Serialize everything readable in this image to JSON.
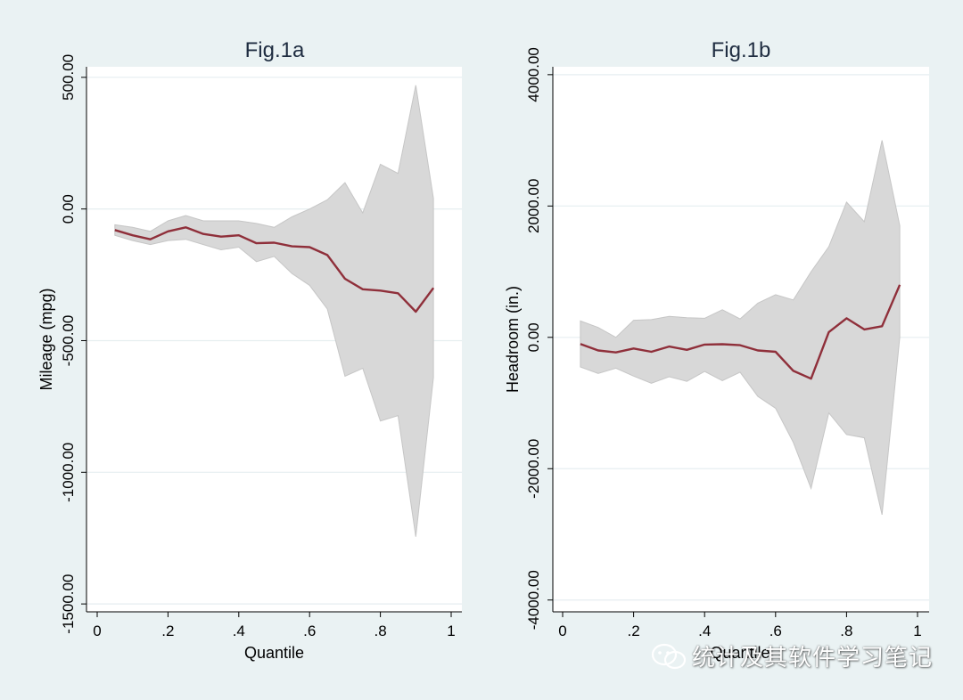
{
  "chart_data": [
    {
      "type": "area",
      "title": "Fig.1a",
      "xlabel": "Quantile",
      "ylabel": "Mileage (mpg)",
      "xlim": [
        0,
        1
      ],
      "ylim": [
        -1530,
        540
      ],
      "xticks": [
        0,
        0.2,
        0.4,
        0.6,
        0.8,
        1
      ],
      "xtick_labels": [
        "0",
        ".2",
        ".4",
        ".6",
        ".8",
        "1"
      ],
      "yticks": [
        500,
        0,
        -500,
        -1000,
        -1500
      ],
      "ytick_labels": [
        "500.00",
        "0.00",
        "-500.00",
        "-1000.00",
        "-1500.00"
      ],
      "grid": true,
      "x": [
        0.05,
        0.1,
        0.15,
        0.2,
        0.25,
        0.3,
        0.35,
        0.4,
        0.45,
        0.5,
        0.55,
        0.6,
        0.65,
        0.7,
        0.75,
        0.8,
        0.85,
        0.9,
        0.95
      ],
      "series": [
        {
          "kind": "line",
          "values": [
            -80,
            -100,
            -115,
            -85,
            -70,
            -95,
            -105,
            -100,
            -130,
            -128,
            -142,
            -145,
            -175,
            -265,
            -305,
            -310,
            -320,
            -390,
            -300
          ]
        },
        {
          "kind": "band",
          "lower": [
            -100,
            -120,
            -135,
            -120,
            -115,
            -135,
            -155,
            -145,
            -200,
            -180,
            -245,
            -290,
            -380,
            -635,
            -605,
            -805,
            -785,
            -1245,
            -640
          ],
          "upper": [
            -60,
            -70,
            -85,
            -45,
            -25,
            -45,
            -45,
            -45,
            -55,
            -70,
            -30,
            0,
            35,
            100,
            -15,
            170,
            135,
            470,
            40
          ]
        }
      ],
      "colors": {
        "line": "#8f2f3a",
        "band": "#d8d8d8",
        "band_edge": "#c6c6c6"
      }
    },
    {
      "type": "area",
      "title": "Fig.1b",
      "xlabel": "Quantile",
      "ylabel": "Headroom (in.)",
      "xlim": [
        0,
        1
      ],
      "ylim": [
        -4180,
        4120
      ],
      "xticks": [
        0,
        0.2,
        0.4,
        0.6,
        0.8,
        1
      ],
      "xtick_labels": [
        "0",
        ".2",
        ".4",
        ".6",
        ".8",
        "1"
      ],
      "yticks": [
        4000,
        2000,
        0,
        -2000,
        -4000
      ],
      "ytick_labels": [
        "4000.00",
        "2000.00",
        "0.00",
        "-2000.00",
        "-4000.00"
      ],
      "grid": true,
      "x": [
        0.05,
        0.1,
        0.15,
        0.2,
        0.25,
        0.3,
        0.35,
        0.4,
        0.45,
        0.5,
        0.55,
        0.6,
        0.65,
        0.7,
        0.75,
        0.8,
        0.85,
        0.9,
        0.95
      ],
      "series": [
        {
          "kind": "line",
          "values": [
            -100,
            -200,
            -230,
            -170,
            -220,
            -140,
            -190,
            -110,
            -105,
            -120,
            -200,
            -220,
            -510,
            -630,
            80,
            290,
            120,
            170,
            800
          ]
        },
        {
          "kind": "band",
          "lower": [
            -450,
            -550,
            -470,
            -590,
            -700,
            -600,
            -670,
            -520,
            -660,
            -530,
            -900,
            -1080,
            -1600,
            -2300,
            -1150,
            -1480,
            -1530,
            -2700,
            0
          ],
          "upper": [
            250,
            150,
            0,
            260,
            270,
            320,
            300,
            290,
            420,
            280,
            520,
            650,
            570,
            1000,
            1380,
            2060,
            1760,
            3000,
            1700
          ]
        }
      ],
      "colors": {
        "line": "#8f2f3a",
        "band": "#d8d8d8",
        "band_edge": "#c6c6c6"
      }
    }
  ],
  "watermark": {
    "text": "统计及其软件学习笔记",
    "icon": "wechat-icon"
  }
}
